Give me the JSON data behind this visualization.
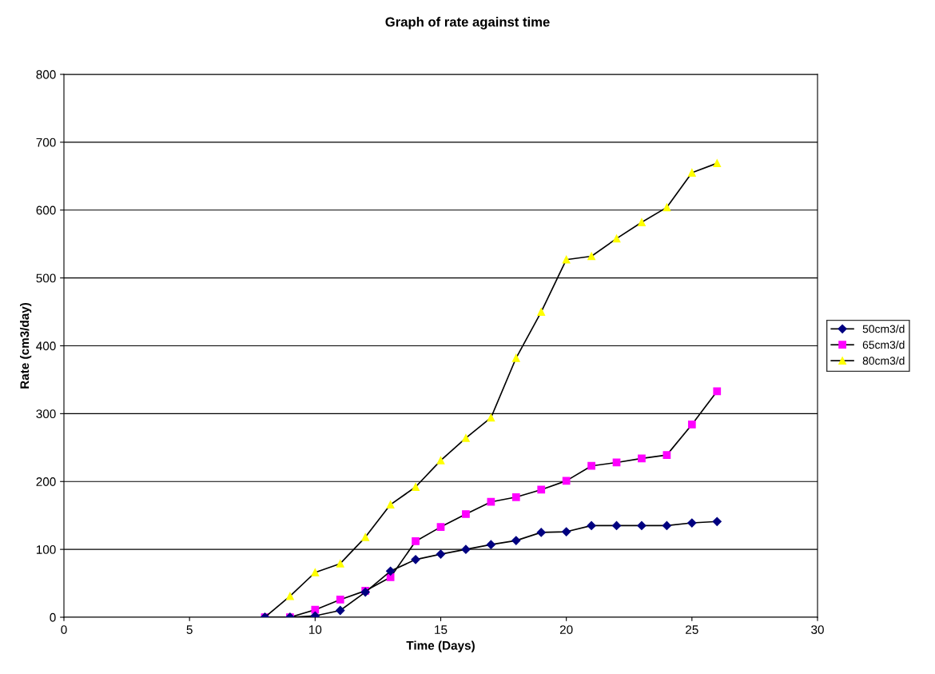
{
  "chart_data": {
    "type": "line",
    "title": "Graph of rate against time",
    "xlabel": "Time (Days)",
    "ylabel": "Rate (cm3/day)",
    "x": [
      8,
      9,
      10,
      11,
      12,
      13,
      14,
      15,
      16,
      17,
      18,
      19,
      20,
      21,
      22,
      23,
      24,
      25,
      26
    ],
    "series": [
      {
        "name": "50cm3/d",
        "color": "#000080",
        "marker": "diamond",
        "values": [
          0,
          0,
          2,
          10,
          37,
          68,
          85,
          93,
          100,
          107,
          113,
          125,
          126,
          135,
          135,
          135,
          135,
          139,
          141
        ]
      },
      {
        "name": "65cm3/d",
        "color": "#ff00ff",
        "marker": "square",
        "values": [
          0,
          0,
          11,
          26,
          39,
          59,
          112,
          133,
          152,
          170,
          177,
          188,
          201,
          223,
          228,
          234,
          239,
          284,
          333
        ]
      },
      {
        "name": "80cm3/d",
        "color": "#ffff00",
        "marker": "triangle",
        "values": [
          0,
          31,
          66,
          79,
          118,
          166,
          192,
          231,
          264,
          294,
          382,
          450,
          527,
          532,
          558,
          582,
          604,
          655,
          669
        ]
      }
    ],
    "xlim": [
      0,
      30
    ],
    "xticks": [
      0,
      5,
      10,
      15,
      20,
      25,
      30
    ],
    "ylim": [
      0,
      800
    ],
    "yticks": [
      0,
      100,
      200,
      300,
      400,
      500,
      600,
      700,
      800
    ],
    "grid": "y",
    "legend": "right",
    "line_style": "solid"
  }
}
